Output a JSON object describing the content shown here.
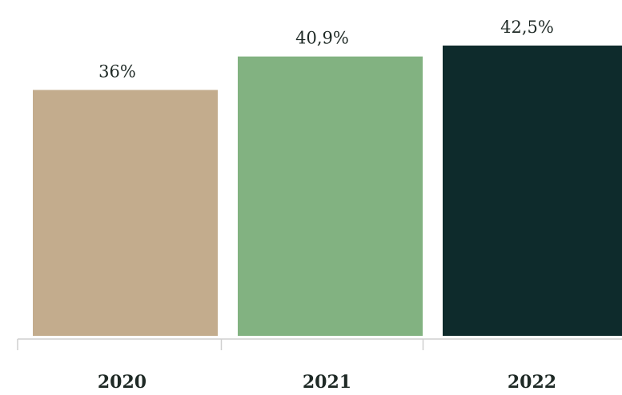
{
  "chart_data": {
    "type": "bar",
    "categories": [
      "2020",
      "2021",
      "2022"
    ],
    "values": [
      36,
      40.9,
      42.5
    ],
    "value_labels": [
      "36%",
      "40,9%",
      "42,5%"
    ],
    "title": "",
    "xlabel": "",
    "ylabel": "",
    "ylim": [
      0,
      48
    ],
    "grid": false,
    "colors": [
      "#c3ac8d",
      "#82b281",
      "#0e2b2c"
    ],
    "axis_color": "#cfcfcf"
  }
}
